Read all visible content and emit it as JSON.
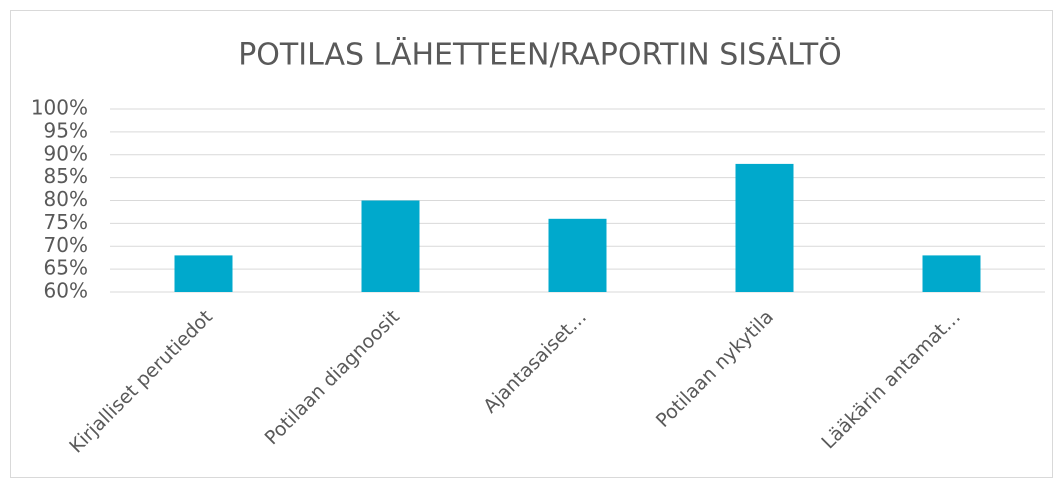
{
  "chart_data": {
    "type": "bar",
    "title": "POTILAS LÄHETTEEN/RAPORTIN SISÄLTÖ",
    "categories": [
      "Kirjalliset perutiedot",
      "Potilaan diagnoosit",
      "Ajantasaiset…",
      "Potilaan nykytila",
      "Lääkärin antamat…"
    ],
    "values": [
      68,
      80,
      76,
      88,
      68
    ],
    "color": "#00a9cc",
    "ylim": [
      60,
      100
    ],
    "yticks": [
      {
        "value": 60,
        "label": "60%"
      },
      {
        "value": 65,
        "label": "65%"
      },
      {
        "value": 70,
        "label": "70%"
      },
      {
        "value": 75,
        "label": "75%"
      },
      {
        "value": 80,
        "label": "80%"
      },
      {
        "value": 85,
        "label": "85%"
      },
      {
        "value": 90,
        "label": "90%"
      },
      {
        "value": 95,
        "label": "95%"
      },
      {
        "value": 100,
        "label": "100%"
      }
    ],
    "grid": true
  }
}
